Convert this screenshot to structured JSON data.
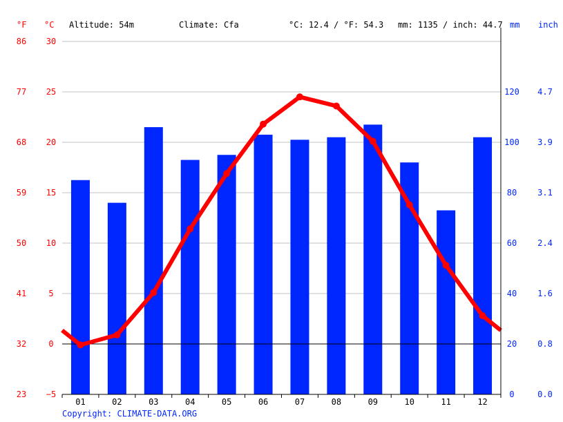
{
  "chart_data": {
    "type": "bar+line",
    "header": {
      "altitude": "Altitude: 54m",
      "climate": "Climate: Cfa",
      "temp_mean": "°C: 12.4 / °F: 54.3",
      "precip_total": "mm: 1135 / inch: 44.7"
    },
    "axis_units": {
      "f": "°F",
      "c": "°C",
      "mm": "mm",
      "inch": "inch"
    },
    "categories": [
      "01",
      "02",
      "03",
      "04",
      "05",
      "06",
      "07",
      "08",
      "09",
      "10",
      "11",
      "12"
    ],
    "series": [
      {
        "kind": "bar",
        "unit": "mm",
        "color": "#0026ff",
        "values": [
          85,
          76,
          106,
          93,
          95,
          103,
          101,
          102,
          107,
          92,
          73,
          102
        ]
      },
      {
        "kind": "line",
        "unit": "°C",
        "color": "#ff0000",
        "values": [
          -0.1,
          0.9,
          5.1,
          11.4,
          16.9,
          21.8,
          24.5,
          23.6,
          20.1,
          13.8,
          7.8,
          2.8
        ]
      }
    ],
    "c_ticks": [
      "30",
      "25",
      "20",
      "15",
      "10",
      "5",
      "0",
      "−5"
    ],
    "f_ticks": [
      "86",
      "77",
      "68",
      "59",
      "50",
      "41",
      "32",
      "23"
    ],
    "mm_ticks": [
      "120",
      "100",
      "80",
      "60",
      "40",
      "20",
      "0"
    ],
    "inch_ticks": [
      "4.7",
      "3.9",
      "3.1",
      "2.4",
      "1.6",
      "0.8",
      "0.0"
    ],
    "c_range": [
      -5,
      30
    ],
    "mm_range": [
      0,
      140
    ],
    "grid": true,
    "colors": {
      "temp": "#ff0000",
      "precip": "#0026ff",
      "grid": "#c0c0c0"
    },
    "copyright": "Copyright: CLIMATE-DATA.ORG"
  }
}
